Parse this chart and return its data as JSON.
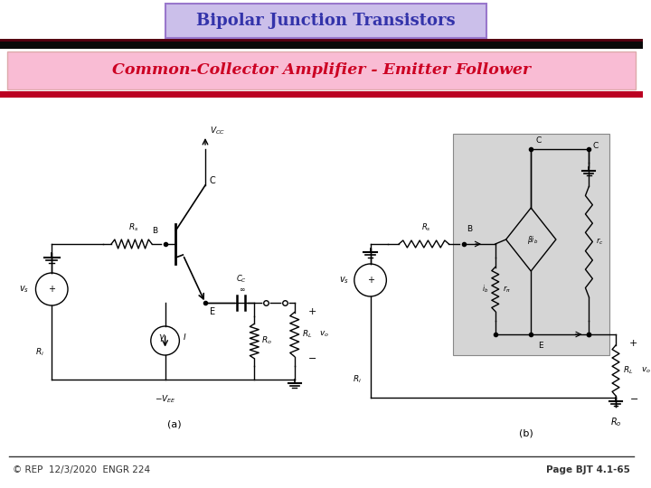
{
  "title": "Bipolar Junction Transistors",
  "subtitle": "Common-Collector Amplifier - Emitter Follower",
  "footer_left": "© REP  12/3/2020  ENGR 224",
  "footer_right": "Page BJT 4.1-65",
  "title_box_color": "#cbbfea",
  "title_text_color": "#3333aa",
  "subtitle_box_color": "#f9bcd4",
  "subtitle_text_color": "#cc0022",
  "header_bar_color": "#0a0a0a",
  "subheader_bar_color": "#bb0022",
  "bg_color": "#ffffff",
  "fig_width": 7.2,
  "fig_height": 5.4,
  "dpi": 100,
  "label_a": "(a)",
  "label_b": "(b)"
}
